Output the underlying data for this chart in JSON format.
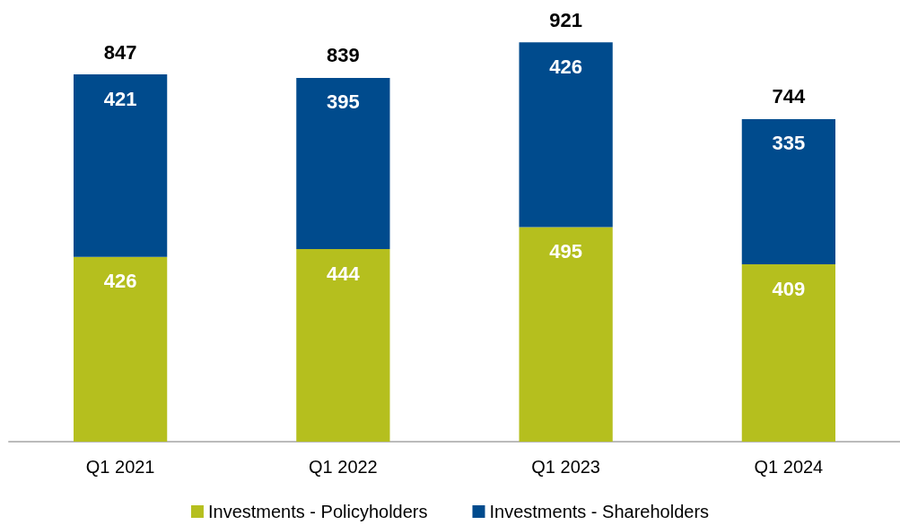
{
  "chart_data": {
    "type": "bar",
    "stacked": true,
    "data_labels": true,
    "legend": "bottom",
    "categories": [
      "Q1 2021",
      "Q1 2022",
      "Q1 2023",
      "Q1 2024"
    ],
    "series": [
      {
        "name": "Investments - Policyholders",
        "color": "#b5bf1e",
        "values": [
          426,
          444,
          495,
          409
        ]
      },
      {
        "name": "Investments - Shareholders",
        "color": "#004b8d",
        "values": [
          421,
          395,
          426,
          335
        ]
      }
    ],
    "totals": [
      "847",
      "839",
      "921",
      "744"
    ]
  }
}
